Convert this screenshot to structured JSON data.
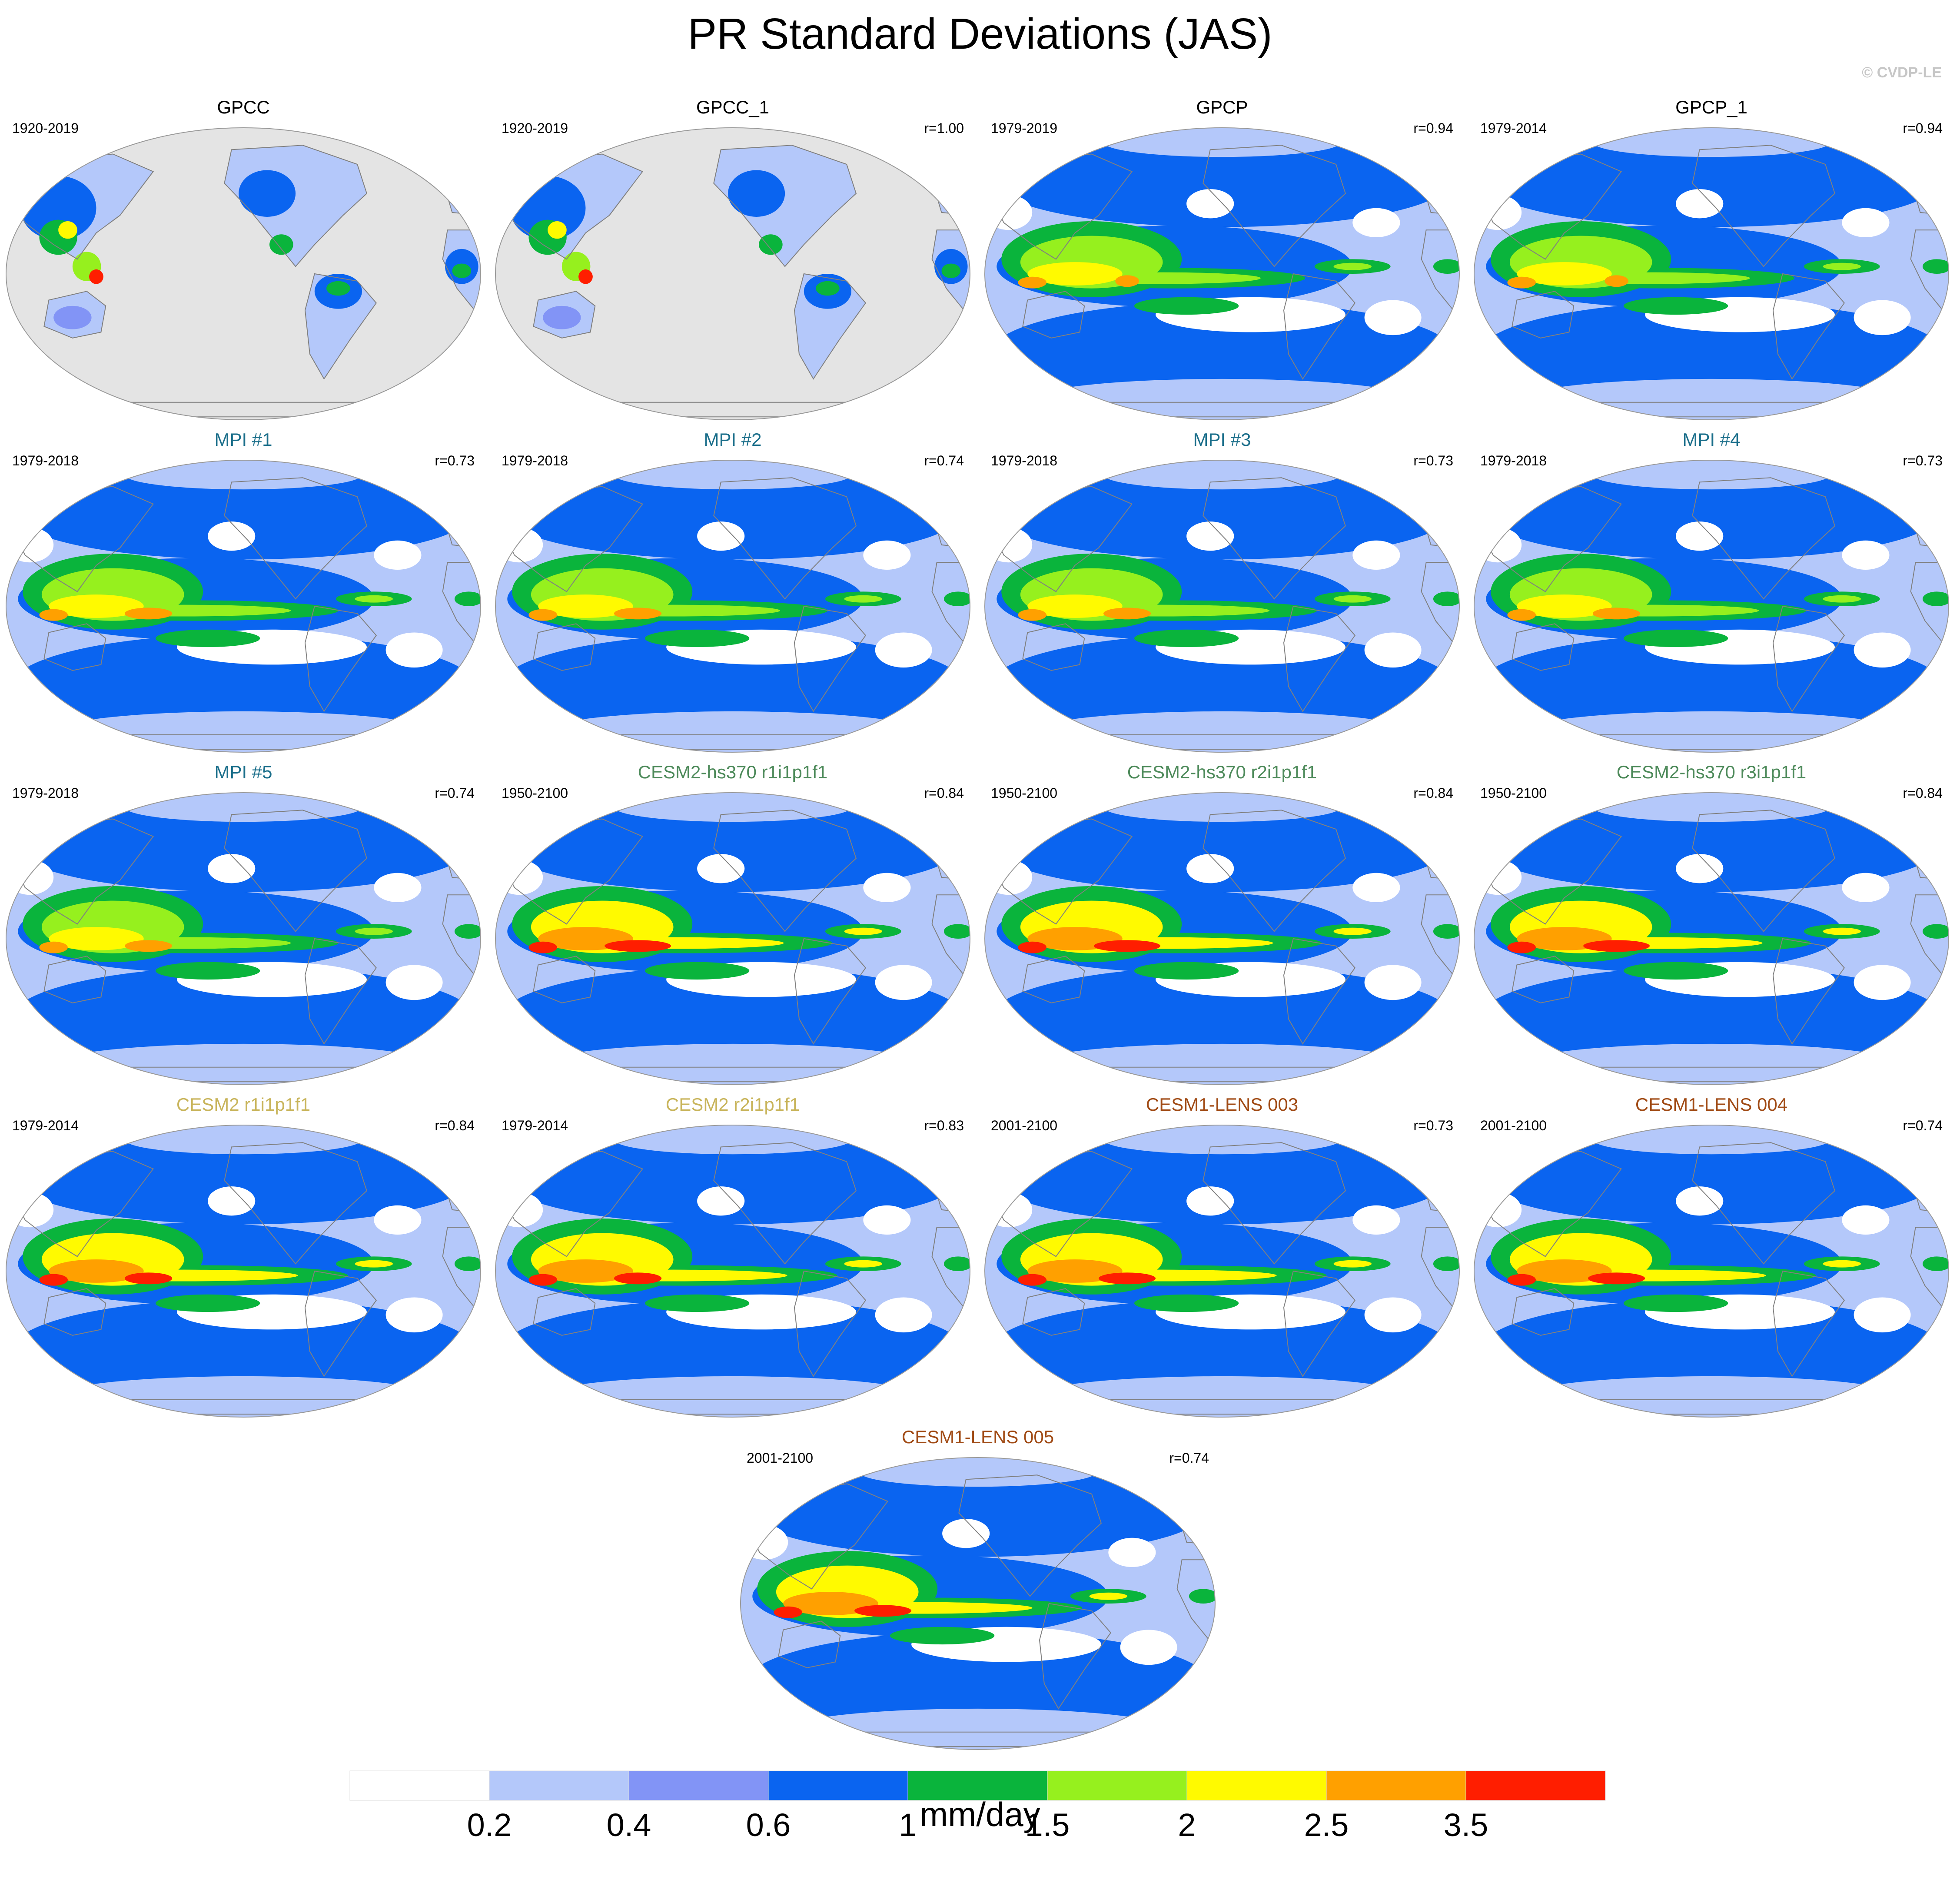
{
  "figure": {
    "title": "PR Standard Deviations (JAS)",
    "copyright": "© CVDP-LE",
    "units": "mm/day"
  },
  "colorbar": {
    "labels": [
      "0.2",
      "0.4",
      "0.6",
      "1",
      "1.5",
      "2",
      "2.5",
      "3.5"
    ],
    "colors": [
      "#ffffff",
      "#b4c8fa",
      "#8294f6",
      "#0a64f0",
      "#0ab43c",
      "#96f01e",
      "#fffa00",
      "#ffa000",
      "#ff1e00"
    ]
  },
  "colors": {
    "land_missing": "#e4e4e4",
    "outline": "#9a9a9a",
    "coast": "#808080",
    "title_obs": "#000000",
    "title_mpi": "#1a6e8a",
    "title_cesm2_hs370": "#4d8a5a",
    "title_cesm2": "#c8b45a",
    "title_cesm1": "#a04a14"
  },
  "panels": [
    {
      "title": "GPCC",
      "period": "1920-2019",
      "r": "",
      "style": "obs",
      "titleColor": "#000000"
    },
    {
      "title": "GPCC_1",
      "period": "1920-2019",
      "r": "r=1.00",
      "style": "obs",
      "titleColor": "#000000"
    },
    {
      "title": "GPCP",
      "period": "1979-2019",
      "r": "r=0.94",
      "style": "gpcp",
      "titleColor": "#000000"
    },
    {
      "title": "GPCP_1",
      "period": "1979-2014",
      "r": "r=0.94",
      "style": "gpcp",
      "titleColor": "#000000"
    },
    {
      "title": "MPI #1",
      "period": "1979-2018",
      "r": "r=0.73",
      "style": "mpi",
      "titleColor": "#1a6e8a"
    },
    {
      "title": "MPI #2",
      "period": "1979-2018",
      "r": "r=0.74",
      "style": "mpi",
      "titleColor": "#1a6e8a"
    },
    {
      "title": "MPI #3",
      "period": "1979-2018",
      "r": "r=0.73",
      "style": "mpi",
      "titleColor": "#1a6e8a"
    },
    {
      "title": "MPI #4",
      "period": "1979-2018",
      "r": "r=0.73",
      "style": "mpi",
      "titleColor": "#1a6e8a"
    },
    {
      "title": "MPI #5",
      "period": "1979-2018",
      "r": "r=0.74",
      "style": "mpi",
      "titleColor": "#1a6e8a"
    },
    {
      "title": "CESM2-hs370 r1i1p1f1",
      "period": "1950-2100",
      "r": "r=0.84",
      "style": "hs370",
      "titleColor": "#4d8a5a"
    },
    {
      "title": "CESM2-hs370 r2i1p1f1",
      "period": "1950-2100",
      "r": "r=0.84",
      "style": "hs370",
      "titleColor": "#4d8a5a"
    },
    {
      "title": "CESM2-hs370 r3i1p1f1",
      "period": "1950-2100",
      "r": "r=0.84",
      "style": "hs370",
      "titleColor": "#4d8a5a"
    },
    {
      "title": "CESM2 r1i1p1f1",
      "period": "1979-2014",
      "r": "r=0.84",
      "style": "cesm2",
      "titleColor": "#c8b45a"
    },
    {
      "title": "CESM2 r2i1p1f1",
      "period": "1979-2014",
      "r": "r=0.83",
      "style": "cesm2",
      "titleColor": "#c8b45a"
    },
    {
      "title": "CESM1-LENS 003",
      "period": "2001-2100",
      "r": "r=0.73",
      "style": "cesm1",
      "titleColor": "#a04a14"
    },
    {
      "title": "CESM1-LENS 004",
      "period": "2001-2100",
      "r": "r=0.74",
      "style": "cesm1",
      "titleColor": "#a04a14"
    },
    {
      "title": "CESM1-LENS 005",
      "period": "2001-2100",
      "r": "r=0.74",
      "style": "cesm1",
      "titleColor": "#a04a14"
    }
  ]
}
